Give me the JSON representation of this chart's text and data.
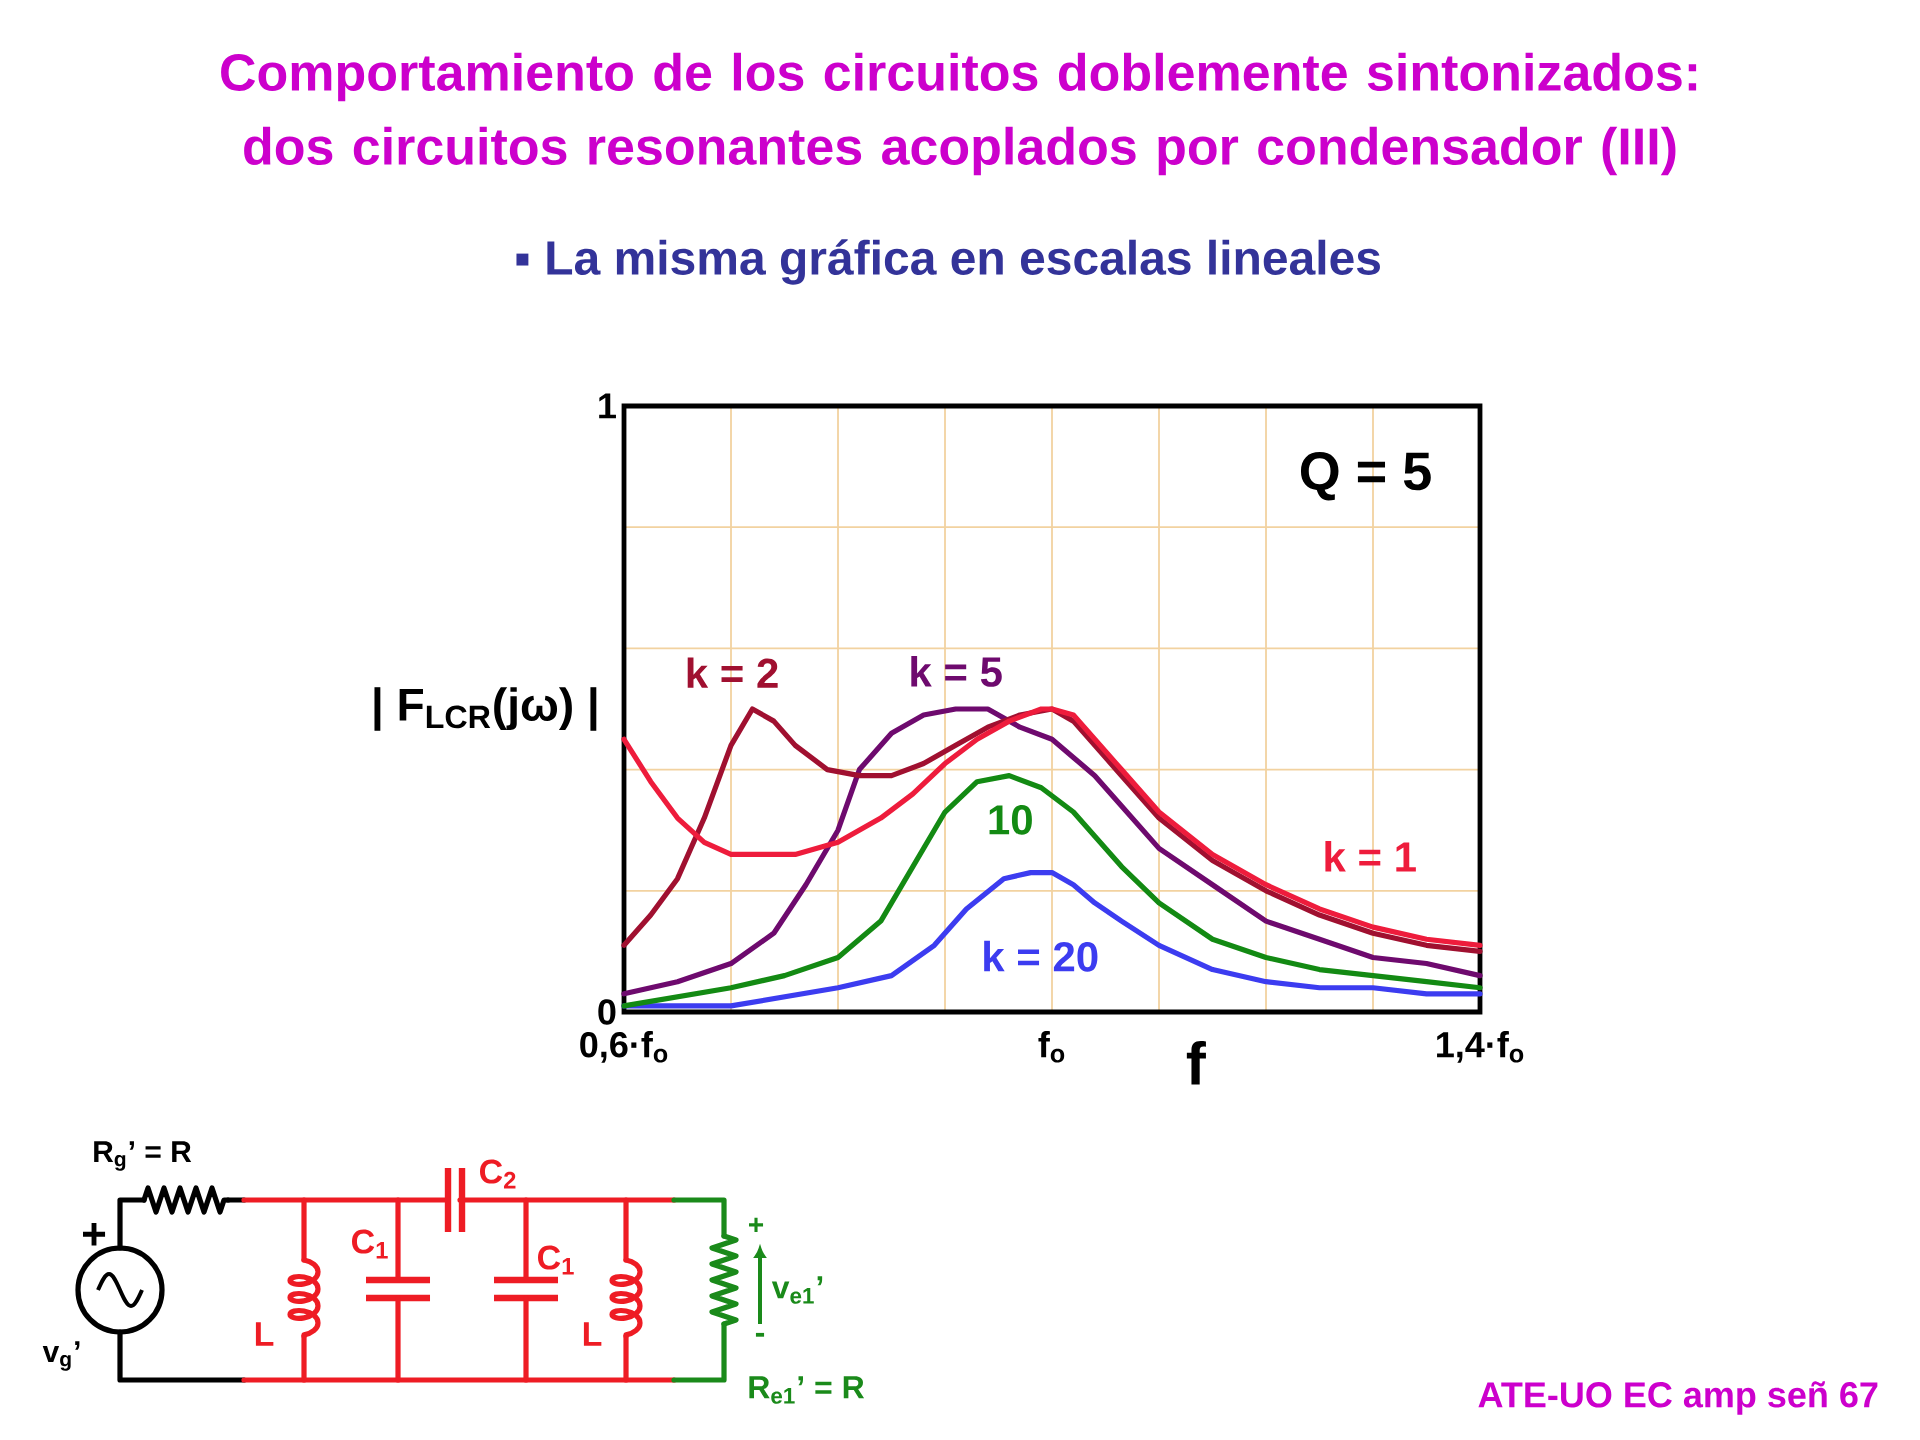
{
  "chart_data": {
    "type": "line",
    "title": "Comportamiento de los circuitos doblemente sintonizados: dos circuitos resonantes acoplados por condensador (III)",
    "subtitle": "▪ La misma gráfica en escalas lineales",
    "xlabel": "f",
    "ylabel": "| F$_{LCR}$(jω) |",
    "xlim": [
      0.6,
      1.4
    ],
    "xticks": [
      {
        "value": 0.6,
        "label": "0,6·f$_{o}$"
      },
      {
        "value": 0.7,
        "label": null
      },
      {
        "value": 0.8,
        "label": null
      },
      {
        "value": 0.9,
        "label": null
      },
      {
        "value": 1,
        "label": "f$_{o}$"
      },
      {
        "value": 1.1,
        "label": null
      },
      {
        "value": 1.2,
        "label": null
      },
      {
        "value": 1.3,
        "label": null
      },
      {
        "value": 1.4,
        "label": "1,4·f$_{o}$"
      }
    ],
    "ylim": [
      0,
      1
    ],
    "yticks": [
      0,
      {
        "value": 0.2,
        "label": null
      },
      {
        "value": 0.4,
        "label": null
      },
      {
        "value": 0.6,
        "label": null
      },
      {
        "value": 0.8,
        "label": null
      },
      1
    ],
    "grid": true,
    "series": [
      {
        "name": "k = 1",
        "color": "#ee1c3c",
        "x": [
          0.6,
          0.625,
          0.65,
          0.675,
          0.7,
          0.73,
          0.76,
          0.8,
          0.84,
          0.87,
          0.9,
          0.93,
          0.96,
          0.99,
          1.0,
          1.02,
          1.04,
          1.065,
          1.1,
          1.15,
          1.2,
          1.25,
          1.3,
          1.35,
          1.4
        ],
        "values": [
          0.45,
          0.38,
          0.32,
          0.28,
          0.26,
          0.26,
          0.26,
          0.28,
          0.32,
          0.36,
          0.41,
          0.45,
          0.48,
          0.5,
          0.5,
          0.49,
          0.45,
          0.4,
          0.33,
          0.26,
          0.21,
          0.17,
          0.14,
          0.12,
          0.11
        ]
      },
      {
        "name": "k = 2",
        "color": "#a01030",
        "x": [
          0.6,
          0.625,
          0.65,
          0.675,
          0.7,
          0.72,
          0.74,
          0.76,
          0.79,
          0.82,
          0.85,
          0.88,
          0.91,
          0.94,
          0.97,
          1.0,
          1.02,
          1.04,
          1.065,
          1.1,
          1.15,
          1.2,
          1.25,
          1.3,
          1.35,
          1.4
        ],
        "values": [
          0.11,
          0.16,
          0.22,
          0.32,
          0.44,
          0.5,
          0.48,
          0.44,
          0.4,
          0.39,
          0.39,
          0.41,
          0.44,
          0.47,
          0.49,
          0.5,
          0.48,
          0.44,
          0.39,
          0.32,
          0.25,
          0.2,
          0.16,
          0.13,
          0.11,
          0.1
        ]
      },
      {
        "name": "k = 5",
        "color": "#6e0a6e",
        "x": [
          0.6,
          0.65,
          0.7,
          0.74,
          0.77,
          0.8,
          0.82,
          0.85,
          0.88,
          0.91,
          0.94,
          0.97,
          1.0,
          1.02,
          1.04,
          1.065,
          1.1,
          1.15,
          1.2,
          1.25,
          1.3,
          1.35,
          1.4
        ],
        "values": [
          0.03,
          0.05,
          0.08,
          0.13,
          0.21,
          0.3,
          0.4,
          0.46,
          0.49,
          0.5,
          0.5,
          0.47,
          0.45,
          0.42,
          0.39,
          0.34,
          0.27,
          0.21,
          0.15,
          0.12,
          0.09,
          0.08,
          0.06
        ]
      },
      {
        "name": "10",
        "color": "#138a13",
        "x": [
          0.6,
          0.7,
          0.75,
          0.8,
          0.84,
          0.87,
          0.9,
          0.93,
          0.96,
          0.99,
          1.02,
          1.04,
          1.065,
          1.1,
          1.15,
          1.2,
          1.25,
          1.3,
          1.35,
          1.4
        ],
        "values": [
          0.01,
          0.04,
          0.06,
          0.09,
          0.15,
          0.24,
          0.33,
          0.38,
          0.39,
          0.37,
          0.33,
          0.29,
          0.24,
          0.18,
          0.12,
          0.09,
          0.07,
          0.06,
          0.05,
          0.04
        ]
      },
      {
        "name": "k = 20",
        "color": "#3c3cf0",
        "x": [
          0.6,
          0.7,
          0.8,
          0.85,
          0.89,
          0.92,
          0.955,
          0.98,
          1.0,
          1.02,
          1.04,
          1.065,
          1.1,
          1.15,
          1.2,
          1.25,
          1.3,
          1.35,
          1.4
        ],
        "values": [
          0.01,
          0.01,
          0.04,
          0.06,
          0.11,
          0.17,
          0.22,
          0.23,
          0.23,
          0.21,
          0.18,
          0.15,
          0.11,
          0.07,
          0.05,
          0.04,
          0.04,
          0.03,
          0.03
        ]
      }
    ],
    "annotations": [
      "Q = 5",
      "R$_{g}$’ = R",
      "C$_{2}$",
      "+",
      "C$_{1}$",
      "C$_{1}$",
      "+",
      "v$_{e1}$’",
      "L",
      "L",
      "-",
      "v$_{g}$’",
      "R$_{e1}$’ = R",
      "ATE-UO EC amp señ 67"
    ]
  }
}
